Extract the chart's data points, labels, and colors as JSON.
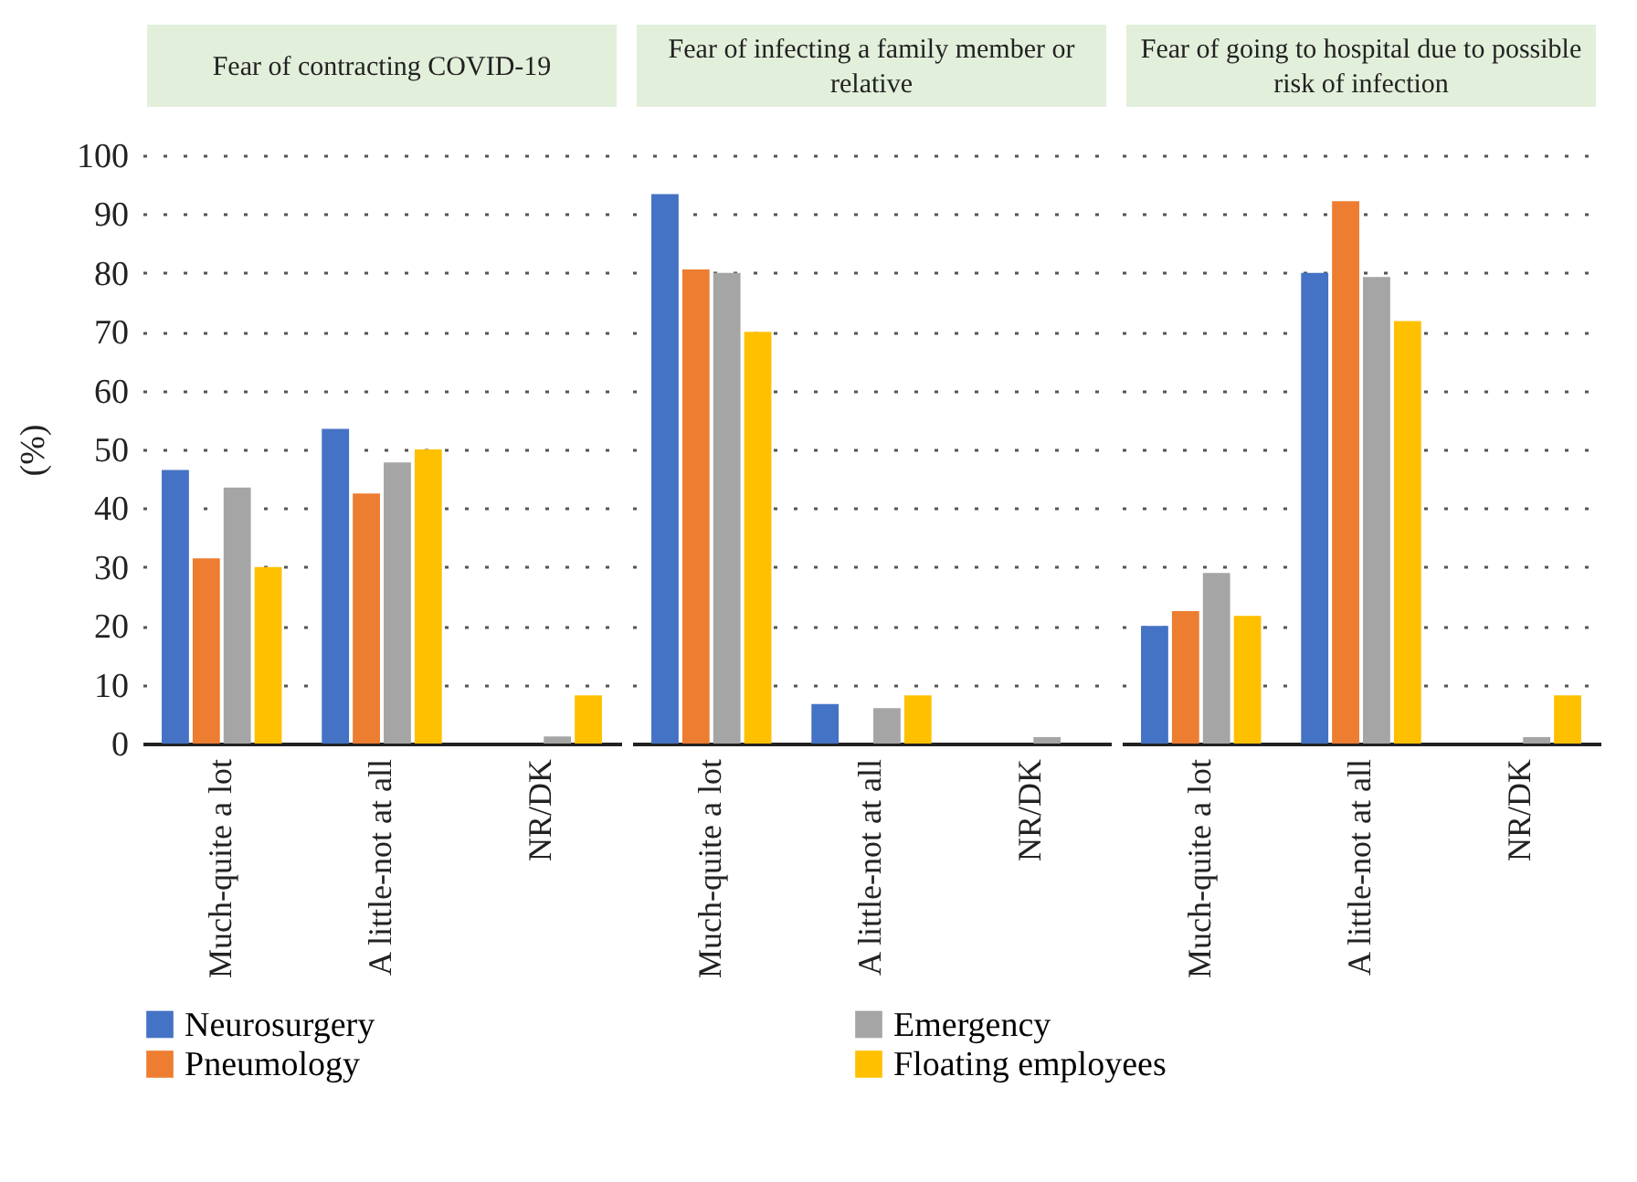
{
  "chart_data": [
    {
      "type": "bar",
      "title": "Fear of contracting COVID-19",
      "ylabel": "(%)",
      "categories": [
        "Much-quite a lot",
        "A little-not at all",
        "NR/DK"
      ],
      "ylim": [
        0,
        100
      ],
      "yticks": [
        0,
        10,
        20,
        30,
        40,
        50,
        60,
        70,
        80,
        90,
        100
      ],
      "grid": "y",
      "legend": "bottom",
      "series": [
        {
          "name": "Neurosurgery",
          "color": "#4472c4",
          "values": [
            46.5,
            53.5,
            0
          ]
        },
        {
          "name": "Pneumology",
          "color": "#ed7d31",
          "values": [
            31.5,
            42.5,
            0
          ]
        },
        {
          "name": "Emergency",
          "color": "#a5a5a5",
          "values": [
            43.5,
            47.8,
            1.2
          ]
        },
        {
          "name": "Floating employees",
          "color": "#ffc000",
          "values": [
            30,
            50,
            8.2
          ]
        }
      ]
    },
    {
      "type": "bar",
      "title": "Fear of infecting a family member or relative",
      "categories": [
        "Much-quite a lot",
        "A little-not at all",
        "NR/DK"
      ],
      "ylim": [
        0,
        100
      ],
      "yticks": [
        0,
        10,
        20,
        30,
        40,
        50,
        60,
        70,
        80,
        90,
        100
      ],
      "grid": "y",
      "tick_labels": "x",
      "series": [
        {
          "color": "#4472c4",
          "values": [
            93.4,
            6.7,
            0
          ]
        },
        {
          "color": "#ed7d31",
          "values": [
            80.6,
            0,
            0
          ]
        },
        {
          "color": "#a5a5a5",
          "values": [
            80,
            6,
            1.1
          ]
        },
        {
          "color": "#ffc000",
          "values": [
            70,
            8.2,
            0
          ]
        }
      ]
    },
    {
      "type": "bar",
      "title": "Fear of going to hospital due to possible risk of infection",
      "categories": [
        "Much-quite a lot",
        "A little-not at all",
        "NR/DK"
      ],
      "ylim": [
        0,
        100
      ],
      "yticks": [
        0,
        10,
        20,
        30,
        40,
        50,
        60,
        70,
        80,
        90,
        100
      ],
      "grid": "y",
      "tick_labels": "x",
      "series": [
        {
          "color": "#4472c4",
          "values": [
            20,
            80,
            0
          ]
        },
        {
          "color": "#ed7d31",
          "values": [
            22.5,
            92.2,
            0
          ]
        },
        {
          "color": "#a5a5a5",
          "values": [
            29,
            79.3,
            1.1
          ]
        },
        {
          "color": "#ffc000",
          "values": [
            21.7,
            71.8,
            8.2
          ]
        }
      ]
    }
  ]
}
